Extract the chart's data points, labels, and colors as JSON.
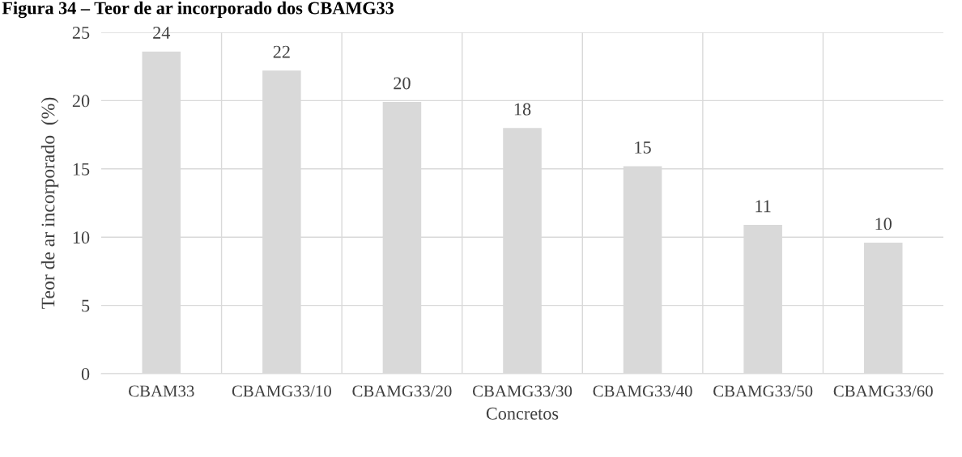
{
  "chart_data": {
    "type": "bar",
    "title": "Figura 34 – Teor de ar incorporado dos CBAMG33",
    "xlabel": "Concretos",
    "ylabel": "Teor de ar incorporado  (%)",
    "categories": [
      "CBAM33",
      "CBAMG33/10",
      "CBAMG33/20",
      "CBAMG33/30",
      "CBAMG33/40",
      "CBAMG33/50",
      "CBAMG33/60"
    ],
    "values": [
      23.6,
      22.2,
      19.9,
      18.0,
      15.2,
      10.9,
      9.6
    ],
    "value_labels": [
      "24",
      "22",
      "20",
      "18",
      "15",
      "11",
      "10"
    ],
    "color": "#d9d9d9",
    "ylim": [
      0,
      25
    ],
    "yticks": [
      0,
      5,
      10,
      15,
      20,
      25
    ],
    "grid": true,
    "legend": false
  }
}
